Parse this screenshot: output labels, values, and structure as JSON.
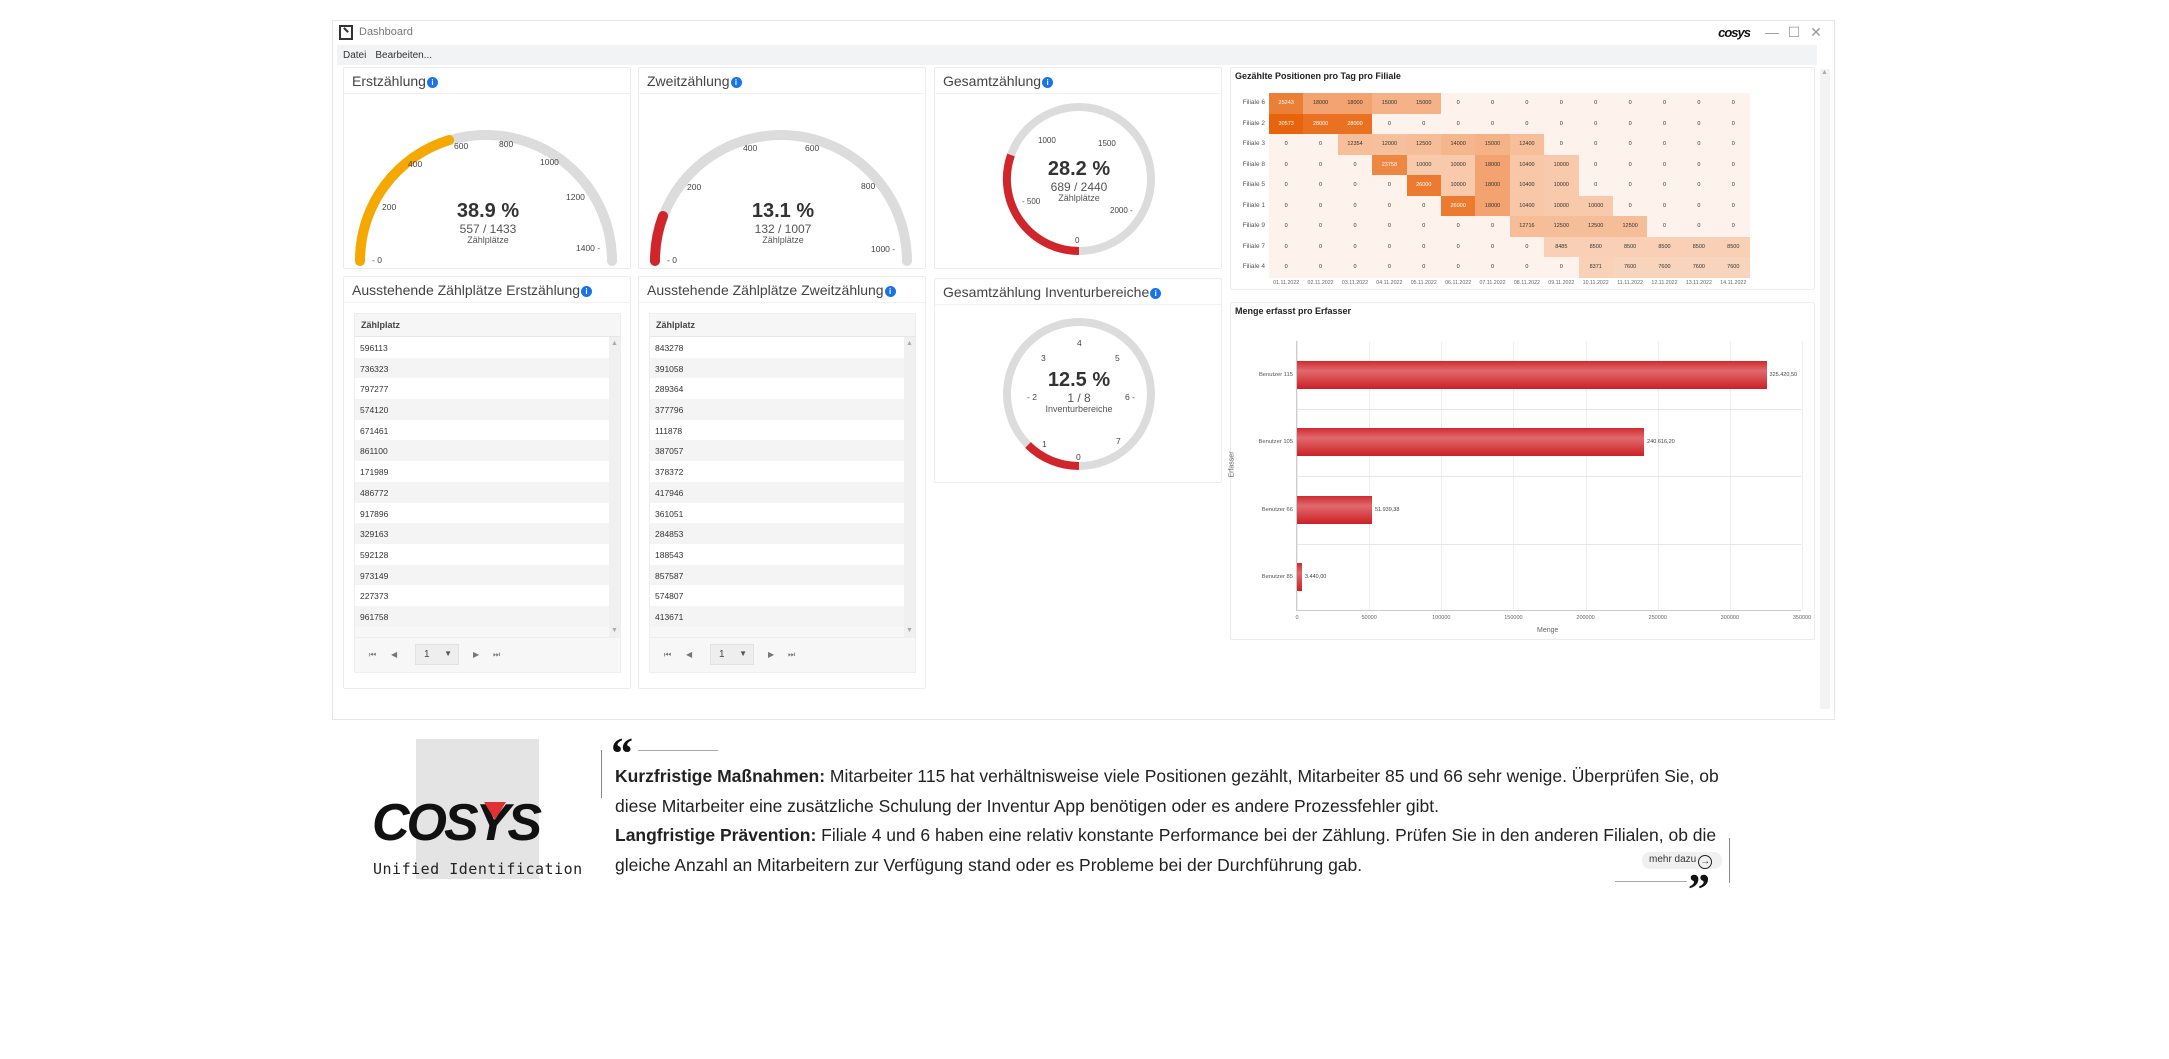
{
  "window": {
    "title": "Dashboard",
    "brand": "cosys",
    "controls": {
      "minimize": "—",
      "maximize": "☐",
      "close": "✕"
    }
  },
  "menu": {
    "items": [
      "Datei",
      "Bearbeiten..."
    ]
  },
  "gauges": {
    "first_count": {
      "title": "Erstzählung",
      "percent": "38.9 %",
      "count": "557 / 1433",
      "unit": "Zählplätze",
      "value": 557,
      "max": 1433,
      "ticks": [
        "0",
        "200",
        "400",
        "600",
        "800",
        "1000",
        "1200",
        "1400"
      ],
      "color": "#f5a800"
    },
    "second_count": {
      "title": "Zweitzählung",
      "percent": "13.1 %",
      "count": "132 / 1007",
      "unit": "Zählplätze",
      "value": 132,
      "max": 1007,
      "ticks": [
        "0",
        "200",
        "400",
        "600",
        "800",
        "1000"
      ],
      "color": "#d0262b"
    },
    "total_count": {
      "title": "Gesamtzählung",
      "percent": "28.2 %",
      "count": "689 / 2440",
      "unit": "Zählplätze",
      "value": 689,
      "max": 2440,
      "ticks": [
        "0",
        "500",
        "1000",
        "1500",
        "2000"
      ],
      "color": "#d0262b"
    },
    "total_areas": {
      "title": "Gesamtzählung Inventurbereiche",
      "percent": "12.5 %",
      "count": "1 / 8",
      "unit": "Inventurbereiche",
      "value": 1,
      "max": 8,
      "ticks": [
        "0",
        "1",
        "2",
        "3",
        "4",
        "5",
        "6",
        "7"
      ],
      "color": "#d0262b"
    }
  },
  "tables": {
    "pending_first": {
      "title": "Ausstehende Zählplätze Erstzählung",
      "column": "Zählplatz",
      "rows": [
        "596113",
        "736323",
        "797277",
        "574120",
        "671461",
        "861100",
        "171989",
        "486772",
        "917896",
        "329163",
        "592128",
        "973149",
        "227373",
        "961758"
      ],
      "pager": {
        "first": "⏮",
        "prev": "◀",
        "page": "1",
        "next": "▶",
        "last": "⏭"
      }
    },
    "pending_second": {
      "title": "Ausstehende Zählplätze Zweitzählung",
      "column": "Zählplatz",
      "rows": [
        "843278",
        "391058",
        "289364",
        "377796",
        "111878",
        "387057",
        "378372",
        "417946",
        "361051",
        "284853",
        "188543",
        "857587",
        "574807",
        "413671"
      ],
      "pager": {
        "first": "⏮",
        "prev": "◀",
        "page": "1",
        "next": "▶",
        "last": "⏭"
      }
    }
  },
  "chart_data": [
    {
      "type": "heatmap",
      "title": "Gezählte Positionen pro Tag pro Filiale",
      "x": [
        "01.11.2022",
        "02.11.2022",
        "03.11.2022",
        "04.11.2022",
        "05.11.2022",
        "06.11.2022",
        "07.11.2022",
        "08.11.2022",
        "09.11.2022",
        "10.11.2022",
        "11.11.2022",
        "12.11.2022",
        "13.11.2022",
        "14.11.2022"
      ],
      "y": [
        "Filiale 6",
        "Filiale 2",
        "Filiale 3",
        "Filiale 8",
        "Filiale 5",
        "Filiale 1",
        "Filiale 9",
        "Filiale 7",
        "Filiale 4"
      ],
      "values": [
        [
          25243,
          18000,
          18000,
          15000,
          15000,
          0,
          0,
          0,
          0,
          0,
          0,
          0,
          0,
          0
        ],
        [
          30573,
          28000,
          28000,
          0,
          0,
          0,
          0,
          0,
          0,
          0,
          0,
          0,
          0,
          0
        ],
        [
          0,
          0,
          12354,
          12000,
          12500,
          14000,
          15000,
          12400,
          0,
          0,
          0,
          0,
          0,
          0
        ],
        [
          0,
          0,
          0,
          23758,
          10000,
          10000,
          18000,
          10400,
          10000,
          0,
          0,
          0,
          0,
          0
        ],
        [
          0,
          0,
          0,
          0,
          26000,
          10000,
          18000,
          10400,
          10000,
          0,
          0,
          0,
          0,
          0
        ],
        [
          0,
          0,
          0,
          0,
          0,
          26000,
          18000,
          10400,
          10000,
          10000,
          0,
          0,
          0,
          0
        ],
        [
          0,
          0,
          0,
          0,
          0,
          0,
          0,
          12716,
          12500,
          12500,
          12500,
          0,
          0,
          0
        ],
        [
          0,
          0,
          0,
          0,
          0,
          0,
          0,
          0,
          8485,
          8500,
          8500,
          8500,
          8500,
          8500
        ],
        [
          0,
          0,
          0,
          0,
          0,
          0,
          0,
          0,
          0,
          8371,
          7600,
          7600,
          7600,
          7600
        ]
      ]
    },
    {
      "type": "bar",
      "orientation": "horizontal",
      "title": "Menge erfasst pro Erfasser",
      "categories": [
        "Benutzer 115",
        "Benutzer 105",
        "Benutzer 66",
        "Benutzer 85"
      ],
      "values": [
        325420.5,
        240616.2,
        51939.38,
        3440.0
      ],
      "value_labels": [
        "325.420,50",
        "240.616,20",
        "51.939,38",
        "3.440,00"
      ],
      "xlabel": "Menge",
      "ylabel": "Erfasser",
      "xlim": [
        0,
        350000
      ],
      "xticks": [
        "0",
        "50000",
        "100000",
        "150000",
        "200000",
        "250000",
        "300000",
        "350000"
      ],
      "color": "#d0262b"
    }
  ],
  "footer": {
    "logo_text": "COSYS",
    "logo_subtitle": "Unified Identification",
    "short_term_label": "Kurzfristige Maßnahmen:",
    "short_term_text": " Mitarbeiter 115 hat verhältnisweise viele Positionen gezählt, Mitarbeiter 85 und 66 sehr wenige. Überprüfen Sie, ob diese Mitarbeiter eine zusätzliche Schulung der Inventur App benötigen oder es andere Prozessfehler gibt.",
    "long_term_label": "Langfristige Prävention:",
    "long_term_text": " Filiale 4 und 6 haben eine relativ konstante Performance bei der Zählung. Prüfen Sie in den anderen Filialen, ob die gleiche Anzahl an Mitarbeitern zur Verfügung stand oder es Probleme bei der Durchführung gab.",
    "more_button": "mehr dazu",
    "quote_open": "“",
    "quote_close": "”"
  }
}
